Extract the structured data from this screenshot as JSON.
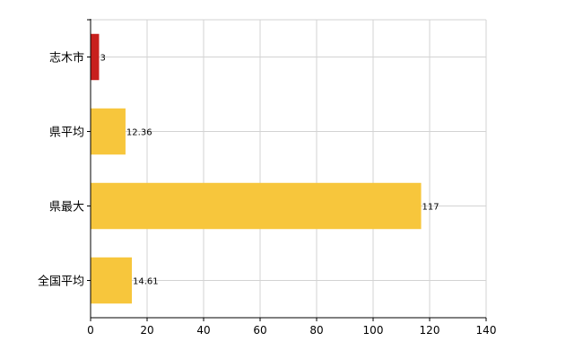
{
  "chart_data": {
    "type": "bar",
    "orientation": "horizontal",
    "categories": [
      "志木市",
      "県平均",
      "県最大",
      "全国平均"
    ],
    "values": [
      3,
      12.36,
      117,
      14.61
    ],
    "data_labels": [
      "3",
      "12.36",
      "117",
      "14.61"
    ],
    "bar_colors": [
      "#c8201d",
      "#f7c63c",
      "#f7c63c",
      "#f7c63c"
    ],
    "xlim": [
      0,
      140
    ],
    "x_ticks": [
      "0",
      "20",
      "40",
      "60",
      "80",
      "100",
      "120",
      "140"
    ],
    "title": "",
    "xlabel": "",
    "ylabel": "",
    "grid": true,
    "legend": "none"
  }
}
